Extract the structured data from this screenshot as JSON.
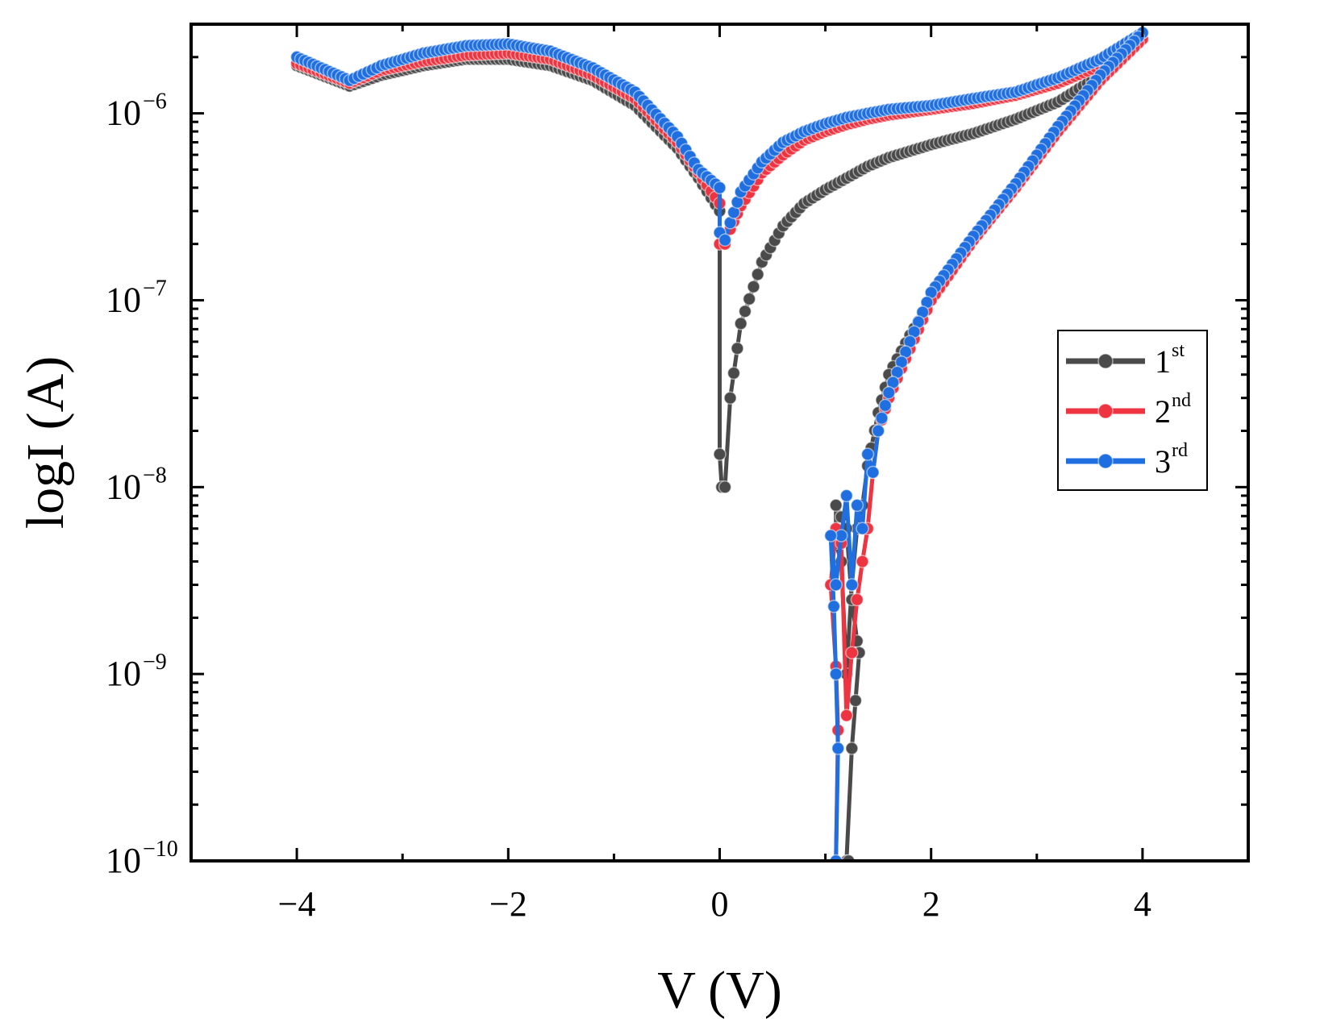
{
  "chart_data": {
    "type": "line",
    "title": "",
    "xlabel": "V (V)",
    "ylabel": "logI (A)",
    "xscale": "linear",
    "yscale": "log",
    "xlim": [
      -5,
      5
    ],
    "ylim": [
      1e-10,
      3e-06
    ],
    "x_ticks": [
      -4,
      -2,
      0,
      2,
      4
    ],
    "x_tick_labels": [
      "−4",
      "−2",
      "0",
      "2",
      "4"
    ],
    "y_ticks": [
      {
        "value": 1e-10,
        "base": "10",
        "exp": "−10"
      },
      {
        "value": 1e-09,
        "base": "10",
        "exp": "−9"
      },
      {
        "value": 1e-08,
        "base": "10",
        "exp": "−8"
      },
      {
        "value": 1e-07,
        "base": "10",
        "exp": "−7"
      },
      {
        "value": 1e-06,
        "base": "10",
        "exp": "−6"
      }
    ],
    "legend": {
      "position": "right",
      "entries": [
        {
          "base": "1",
          "sup": "st",
          "color": "#4a4a4a"
        },
        {
          "base": "2",
          "sup": "nd",
          "color": "#ee3440"
        },
        {
          "base": "3",
          "sup": "rd",
          "color": "#1f6fe0"
        }
      ]
    },
    "series": [
      {
        "name": "1st",
        "color": "#4a4a4a",
        "x": [
          -4.0,
          -3.5,
          -3.2,
          -2.8,
          -2.4,
          -2.0,
          -1.6,
          -1.2,
          -0.8,
          -0.4,
          -0.2,
          0.0,
          0.0,
          0.02,
          0.05,
          0.1,
          0.2,
          0.4,
          0.6,
          0.8,
          1.0,
          1.2,
          1.4,
          1.6,
          2.0,
          2.4,
          2.8,
          3.2,
          3.6,
          4.0,
          4.0,
          3.6,
          3.2,
          2.8,
          2.4,
          2.0,
          1.8,
          1.6,
          1.5,
          1.4,
          1.35,
          1.3,
          1.25,
          1.2,
          1.15,
          1.1,
          1.1,
          1.2,
          1.25,
          1.3,
          1.32,
          1.25,
          1.2,
          1.22
        ],
        "y": [
          1.8e-06,
          1.4e-06,
          1.6e-06,
          1.8e-06,
          1.95e-06,
          1.95e-06,
          1.8e-06,
          1.5e-06,
          1.1e-06,
          6.5e-07,
          4.5e-07,
          3e-07,
          1.5e-08,
          1e-08,
          1e-08,
          3e-08,
          7.5e-08,
          1.6e-07,
          2.5e-07,
          3.3e-07,
          3.9e-07,
          4.5e-07,
          5.2e-07,
          5.8e-07,
          6.8e-07,
          7.8e-07,
          9.3e-07,
          1.15e-06,
          1.6e-06,
          2.5e-06,
          2.5e-06,
          1.5e-06,
          8e-07,
          4e-07,
          2.1e-07,
          1e-07,
          6.5e-08,
          4e-08,
          2.5e-08,
          1.3e-08,
          8e-09,
          6e-09,
          3e-09,
          1e-09,
          4e-09,
          5e-09,
          8e-09,
          6e-09,
          2.5e-09,
          1.5e-09,
          1.3e-09,
          4e-10,
          1e-10,
          1e-10
        ]
      },
      {
        "name": "2nd",
        "color": "#ee3440",
        "x": [
          -4.0,
          -3.5,
          -3.2,
          -2.8,
          -2.4,
          -2.0,
          -1.6,
          -1.2,
          -0.8,
          -0.4,
          -0.2,
          0.0,
          0.0,
          0.05,
          0.1,
          0.2,
          0.4,
          0.6,
          0.8,
          1.0,
          1.2,
          1.4,
          1.6,
          2.0,
          2.4,
          2.8,
          3.2,
          3.6,
          4.0,
          4.0,
          3.6,
          3.2,
          2.8,
          2.4,
          2.0,
          1.8,
          1.6,
          1.5,
          1.45,
          1.4,
          1.35,
          1.3,
          1.25,
          1.2,
          1.15,
          1.1,
          1.05,
          1.1,
          1.12,
          1.1
        ],
        "y": [
          1.85e-06,
          1.45e-06,
          1.7e-06,
          1.9e-06,
          2.05e-06,
          2.1e-06,
          1.95e-06,
          1.6e-06,
          1.2e-06,
          7e-07,
          4.8e-07,
          3.3e-07,
          2e-07,
          2e-07,
          2.4e-07,
          3.2e-07,
          4.8e-07,
          6e-07,
          7.2e-07,
          8e-07,
          8.7e-07,
          9.3e-07,
          9.8e-07,
          1.05e-06,
          1.13e-06,
          1.25e-06,
          1.45e-06,
          1.8e-06,
          2.5e-06,
          2.5e-06,
          1.5e-06,
          8e-07,
          4e-07,
          2.1e-07,
          1e-07,
          5.5e-08,
          3e-08,
          2e-08,
          1.2e-08,
          6e-09,
          4e-09,
          2.5e-09,
          1.3e-09,
          6e-10,
          5e-09,
          6e-09,
          3e-09,
          1.1e-09,
          5e-10,
          1e-10
        ]
      },
      {
        "name": "3rd",
        "color": "#1f6fe0",
        "x": [
          -4.0,
          -3.5,
          -3.2,
          -2.8,
          -2.4,
          -2.0,
          -1.6,
          -1.2,
          -0.8,
          -0.4,
          -0.2,
          0.0,
          0.0,
          0.05,
          0.1,
          0.2,
          0.4,
          0.6,
          0.8,
          1.0,
          1.2,
          1.4,
          1.6,
          2.0,
          2.4,
          2.8,
          3.2,
          3.6,
          4.0,
          4.0,
          3.6,
          3.2,
          2.8,
          2.4,
          2.0,
          1.8,
          1.6,
          1.5,
          1.45,
          1.4,
          1.35,
          1.3,
          1.25,
          1.2,
          1.15,
          1.1,
          1.05,
          1.08,
          1.1,
          1.12,
          1.1
        ],
        "y": [
          2e-06,
          1.5e-06,
          1.8e-06,
          2.1e-06,
          2.3e-06,
          2.35e-06,
          2.15e-06,
          1.75e-06,
          1.3e-06,
          7.5e-07,
          5e-07,
          4e-07,
          2.3e-07,
          2.1e-07,
          2.6e-07,
          3.8e-07,
          5.5e-07,
          7e-07,
          8e-07,
          8.8e-07,
          9.5e-07,
          1e-06,
          1.05e-06,
          1.1e-06,
          1.2e-06,
          1.3e-06,
          1.55e-06,
          1.95e-06,
          2.7e-06,
          2.7e-06,
          1.6e-06,
          8.5e-07,
          4.2e-07,
          2.2e-07,
          1.1e-07,
          6e-08,
          3.2e-08,
          2e-08,
          1.2e-08,
          1.5e-08,
          6e-09,
          8e-09,
          3e-09,
          9e-09,
          5.5e-09,
          3e-09,
          5.5e-09,
          2.3e-09,
          1e-09,
          4e-10,
          1e-10
        ]
      }
    ]
  }
}
